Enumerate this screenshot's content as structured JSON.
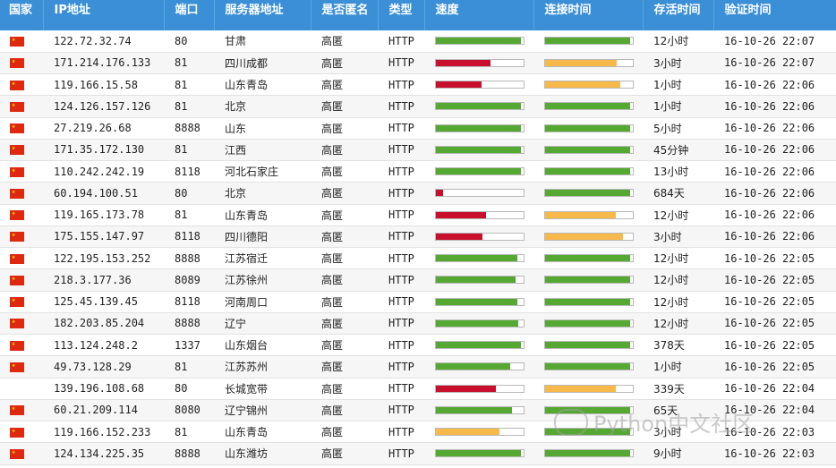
{
  "headers": [
    "国家",
    "IP地址",
    "端口",
    "服务器地址",
    "是否匿名",
    "类型",
    "速度",
    "连接时间",
    "存活时间",
    "验证时间"
  ],
  "colors": {
    "green": "#55a832",
    "red": "#c8102e",
    "orange": "#f7b94a",
    "header_bg": "#3a8fd6"
  },
  "watermark": "Python中文社区",
  "rows": [
    {
      "flag": true,
      "ip": "122.72.32.74",
      "port": "80",
      "location": "甘肃",
      "anon": "高匿",
      "type": "HTTP",
      "speed": 0.97,
      "speed_color": "green",
      "conn": 0.97,
      "conn_color": "green",
      "alive": "12小时",
      "verified": "16-10-26 22:07"
    },
    {
      "flag": true,
      "ip": "171.214.176.133",
      "port": "81",
      "location": "四川成都",
      "anon": "高匿",
      "type": "HTTP",
      "speed": 0.62,
      "speed_color": "red",
      "conn": 0.82,
      "conn_color": "orange",
      "alive": "3小时",
      "verified": "16-10-26 22:07"
    },
    {
      "flag": true,
      "ip": "119.166.15.58",
      "port": "81",
      "location": "山东青岛",
      "anon": "高匿",
      "type": "HTTP",
      "speed": 0.52,
      "speed_color": "red",
      "conn": 0.86,
      "conn_color": "orange",
      "alive": "1小时",
      "verified": "16-10-26 22:06"
    },
    {
      "flag": true,
      "ip": "124.126.157.126",
      "port": "81",
      "location": "北京",
      "anon": "高匿",
      "type": "HTTP",
      "speed": 0.97,
      "speed_color": "green",
      "conn": 0.97,
      "conn_color": "green",
      "alive": "1小时",
      "verified": "16-10-26 22:06"
    },
    {
      "flag": true,
      "ip": "27.219.26.68",
      "port": "8888",
      "location": "山东",
      "anon": "高匿",
      "type": "HTTP",
      "speed": 0.97,
      "speed_color": "green",
      "conn": 0.97,
      "conn_color": "green",
      "alive": "5小时",
      "verified": "16-10-26 22:06"
    },
    {
      "flag": true,
      "ip": "171.35.172.130",
      "port": "81",
      "location": "江西",
      "anon": "高匿",
      "type": "HTTP",
      "speed": 0.97,
      "speed_color": "green",
      "conn": 0.97,
      "conn_color": "green",
      "alive": "45分钟",
      "verified": "16-10-26 22:06"
    },
    {
      "flag": true,
      "ip": "110.242.242.19",
      "port": "8118",
      "location": "河北石家庄",
      "anon": "高匿",
      "type": "HTTP",
      "speed": 0.97,
      "speed_color": "green",
      "conn": 0.97,
      "conn_color": "green",
      "alive": "13小时",
      "verified": "16-10-26 22:06"
    },
    {
      "flag": true,
      "ip": "60.194.100.51",
      "port": "80",
      "location": "北京",
      "anon": "高匿",
      "type": "HTTP",
      "speed": 0.08,
      "speed_color": "red",
      "conn": 0.97,
      "conn_color": "green",
      "alive": "684天",
      "verified": "16-10-26 22:06"
    },
    {
      "flag": true,
      "ip": "119.165.173.78",
      "port": "81",
      "location": "山东青岛",
      "anon": "高匿",
      "type": "HTTP",
      "speed": 0.57,
      "speed_color": "red",
      "conn": 0.81,
      "conn_color": "orange",
      "alive": "12小时",
      "verified": "16-10-26 22:06"
    },
    {
      "flag": true,
      "ip": "175.155.147.97",
      "port": "8118",
      "location": "四川德阳",
      "anon": "高匿",
      "type": "HTTP",
      "speed": 0.53,
      "speed_color": "red",
      "conn": 0.89,
      "conn_color": "orange",
      "alive": "3小时",
      "verified": "16-10-26 22:06"
    },
    {
      "flag": true,
      "ip": "122.195.153.252",
      "port": "8888",
      "location": "江苏宿迁",
      "anon": "高匿",
      "type": "HTTP",
      "speed": 0.93,
      "speed_color": "green",
      "conn": 0.97,
      "conn_color": "green",
      "alive": "12小时",
      "verified": "16-10-26 22:05"
    },
    {
      "flag": true,
      "ip": "218.3.177.36",
      "port": "8089",
      "location": "江苏徐州",
      "anon": "高匿",
      "type": "HTTP",
      "speed": 0.91,
      "speed_color": "green",
      "conn": 0.97,
      "conn_color": "green",
      "alive": "12小时",
      "verified": "16-10-26 22:05"
    },
    {
      "flag": true,
      "ip": "125.45.139.45",
      "port": "8118",
      "location": "河南周口",
      "anon": "高匿",
      "type": "HTTP",
      "speed": 0.93,
      "speed_color": "green",
      "conn": 0.97,
      "conn_color": "green",
      "alive": "12小时",
      "verified": "16-10-26 22:05"
    },
    {
      "flag": true,
      "ip": "182.203.85.204",
      "port": "8888",
      "location": "辽宁",
      "anon": "高匿",
      "type": "HTTP",
      "speed": 0.94,
      "speed_color": "green",
      "conn": 0.97,
      "conn_color": "green",
      "alive": "12小时",
      "verified": "16-10-26 22:05"
    },
    {
      "flag": true,
      "ip": "113.124.248.2",
      "port": "1337",
      "location": "山东烟台",
      "anon": "高匿",
      "type": "HTTP",
      "speed": 0.97,
      "speed_color": "green",
      "conn": 0.97,
      "conn_color": "green",
      "alive": "378天",
      "verified": "16-10-26 22:05"
    },
    {
      "flag": true,
      "ip": "49.73.128.29",
      "port": "81",
      "location": "江苏苏州",
      "anon": "高匿",
      "type": "HTTP",
      "speed": 0.85,
      "speed_color": "green",
      "conn": 0.97,
      "conn_color": "green",
      "alive": "1小时",
      "verified": "16-10-26 22:05"
    },
    {
      "flag": false,
      "ip": "139.196.108.68",
      "port": "80",
      "location": "长城宽带",
      "anon": "高匿",
      "type": "HTTP",
      "speed": 0.68,
      "speed_color": "red",
      "conn": 0.81,
      "conn_color": "orange",
      "alive": "339天",
      "verified": "16-10-26 22:04"
    },
    {
      "flag": true,
      "ip": "60.21.209.114",
      "port": "8080",
      "location": "辽宁锦州",
      "anon": "高匿",
      "type": "HTTP",
      "speed": 0.87,
      "speed_color": "green",
      "conn": 0.97,
      "conn_color": "green",
      "alive": "65天",
      "verified": "16-10-26 22:04"
    },
    {
      "flag": true,
      "ip": "119.166.152.233",
      "port": "81",
      "location": "山东青岛",
      "anon": "高匿",
      "type": "HTTP",
      "speed": 0.72,
      "speed_color": "orange",
      "conn": 0.97,
      "conn_color": "green",
      "alive": "3小时",
      "verified": "16-10-26 22:03"
    },
    {
      "flag": true,
      "ip": "124.134.225.35",
      "port": "8888",
      "location": "山东潍坊",
      "anon": "高匿",
      "type": "HTTP",
      "speed": 0.97,
      "speed_color": "green",
      "conn": 0.97,
      "conn_color": "green",
      "alive": "9小时",
      "verified": "16-10-26 22:03"
    }
  ]
}
